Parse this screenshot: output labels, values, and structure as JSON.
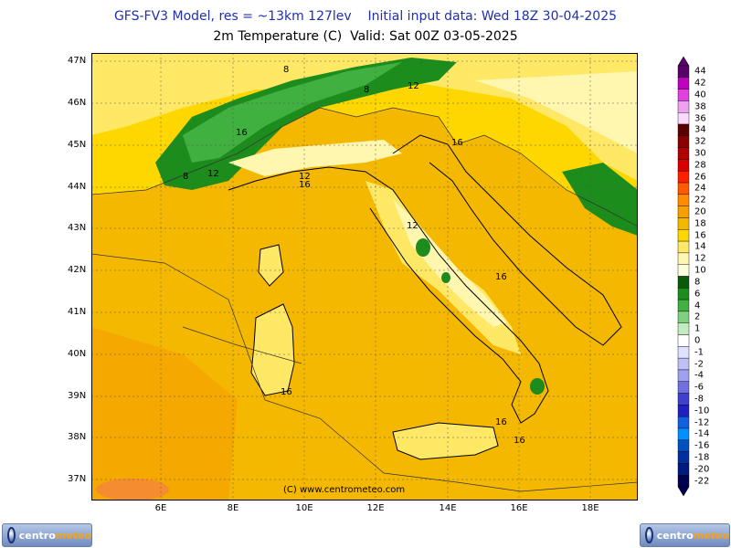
{
  "header": {
    "line1": "GFS-FV3 Model, res = ~13km 127lev    Initial input data: Wed 18Z 30-04-2025",
    "line2": "2m Temperature (C)  Valid: Sat 00Z 03-05-2025"
  },
  "map": {
    "lat_labels": [
      "47N",
      "46N",
      "45N",
      "44N",
      "43N",
      "42N",
      "41N",
      "40N",
      "39N",
      "38N",
      "37N"
    ],
    "lon_labels": [
      "6E",
      "8E",
      "10E",
      "12E",
      "14E",
      "16E",
      "18E"
    ],
    "contour_labels": [
      "8",
      "8",
      "8",
      "12",
      "12",
      "12",
      "12",
      "16",
      "16",
      "16",
      "16",
      "16",
      "16",
      "16"
    ],
    "watermark": "(C)  www.centrometeo.com"
  },
  "legend": {
    "items": [
      {
        "label": "44",
        "color": "#5a006a"
      },
      {
        "label": "42",
        "color": "#c000c0"
      },
      {
        "label": "40",
        "color": "#e040e0"
      },
      {
        "label": "38",
        "color": "#f0a0f0"
      },
      {
        "label": "36",
        "color": "#fcd8fc"
      },
      {
        "label": "34",
        "color": "#5a0000"
      },
      {
        "label": "32",
        "color": "#8a0000"
      },
      {
        "label": "30",
        "color": "#b00000"
      },
      {
        "label": "28",
        "color": "#d80000"
      },
      {
        "label": "26",
        "color": "#ff2000"
      },
      {
        "label": "24",
        "color": "#ff5a00"
      },
      {
        "label": "22",
        "color": "#ff8c00"
      },
      {
        "label": "20",
        "color": "#f5a000"
      },
      {
        "label": "18",
        "color": "#f5b800"
      },
      {
        "label": "16",
        "color": "#ffd700"
      },
      {
        "label": "14",
        "color": "#ffe866"
      },
      {
        "label": "12",
        "color": "#fff6b0"
      },
      {
        "label": "10",
        "color": "#fffde0"
      },
      {
        "label": "8",
        "color": "#0a5a0a"
      },
      {
        "label": "6",
        "color": "#1c8c1c"
      },
      {
        "label": "4",
        "color": "#40b040"
      },
      {
        "label": "2",
        "color": "#80d080"
      },
      {
        "label": "1",
        "color": "#c0ecc0"
      },
      {
        "label": "0",
        "color": "#ffffff"
      },
      {
        "label": "-1",
        "color": "#e0e0ff"
      },
      {
        "label": "-2",
        "color": "#c0c0f8"
      },
      {
        "label": "-4",
        "color": "#a0a0f0"
      },
      {
        "label": "-6",
        "color": "#7070e0"
      },
      {
        "label": "-8",
        "color": "#4040d0"
      },
      {
        "label": "-10",
        "color": "#2020c0"
      },
      {
        "label": "-12",
        "color": "#1060e0"
      },
      {
        "label": "-14",
        "color": "#0090ff"
      },
      {
        "label": "-16",
        "color": "#0050c0"
      },
      {
        "label": "-18",
        "color": "#0030a0"
      },
      {
        "label": "-20",
        "color": "#001a80"
      },
      {
        "label": "-22",
        "color": "#000050"
      }
    ]
  },
  "logo": {
    "text_a": "centro",
    "text_b": "meteo"
  }
}
